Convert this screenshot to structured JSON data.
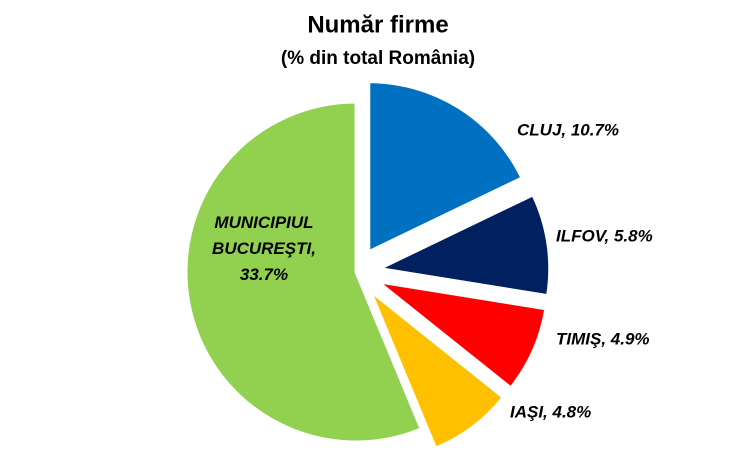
{
  "chart_data": {
    "type": "pie",
    "title": "Număr firme",
    "subtitle": "(% din total România)",
    "categories": [
      "CLUJ, 10.7%",
      "ILFOV, 5.8%",
      "TIMIŞ, 4.9%",
      "IAŞI, 4.8%",
      "MUNICIPIUL BUCUREŞTI, 33.7%"
    ],
    "values": [
      10.7,
      5.8,
      4.9,
      4.8,
      33.7
    ],
    "colors": [
      "#0070c0",
      "#002060",
      "#ff0000",
      "#ffc000",
      "#92d050"
    ]
  }
}
